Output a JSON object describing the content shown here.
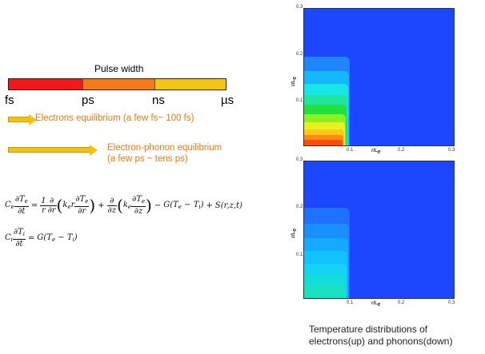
{
  "pulse": {
    "title": "Pulse width",
    "labels": [
      "fs",
      "ps",
      "ns",
      "µs"
    ],
    "segment_colors": [
      "#f01818",
      "#f47a18",
      "#f4c614"
    ]
  },
  "arrows": {
    "electrons": "Electrons equilibrium (a few fs~ 100 fs)",
    "ep_line1": "Electron-phonon equilibrium",
    "ep_line2": "(a few ps ~ tens ps)",
    "arrow_color": "#f4c20d",
    "text_color": "#ee7a10"
  },
  "equations": {
    "Ce": "C",
    "e": "e",
    "i": "i",
    "dTe": "∂T",
    "dt": "∂t",
    "one": "1",
    "r": "r",
    "d": "∂",
    "dr": "∂r",
    "dz": "∂z",
    "ke": "k",
    "kr": "r",
    "G": "G(T",
    "Ti": "T",
    "S": "S(r,z,t)",
    "minus": "−",
    "plus": "+",
    "eq": "=",
    "close": ")"
  },
  "plots": {
    "ticks_y": [
      "0.3",
      "0.2",
      "0.1"
    ],
    "ticks_x": [
      "0.1",
      "0.2",
      "0.3"
    ],
    "xlabel": "r/L",
    "ylabel": "z/L",
    "background": "#1c46ff"
  },
  "caption": {
    "line1": "Temperature distributions of",
    "line2": "electrons(up) and phonons(down)"
  }
}
